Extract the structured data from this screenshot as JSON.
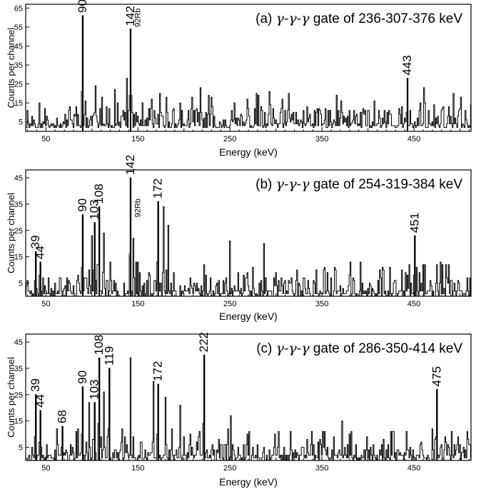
{
  "chart_data": [
    {
      "type": "bar",
      "title_prefix": "(a)",
      "title_gamma": "γ-γ-γ",
      "title_suffix": "gate of 236-307-376 keV",
      "xlabel": "Energy  (keV)",
      "ylabel": "Counts per channel",
      "xlim": [
        28,
        512
      ],
      "ylim": [
        0,
        67
      ],
      "xticks": [
        50,
        150,
        250,
        350,
        450
      ],
      "yticks": [
        5,
        15,
        25,
        35,
        45,
        55,
        65
      ],
      "peaks": [
        {
          "x": 90,
          "y": 61,
          "label": "90"
        },
        {
          "x": 142,
          "y": 54,
          "label": "142"
        },
        {
          "x": 443,
          "y": 28,
          "label": "443"
        }
      ],
      "annotations": [
        {
          "x": 147,
          "y": 55,
          "text": "92Rb"
        }
      ],
      "background": {
        "seed": 11,
        "min": 2,
        "max": 20,
        "spikes": [
          [
            138,
            28
          ],
          [
            104,
            24
          ],
          [
            218,
            23
          ],
          [
            461,
            23
          ],
          [
            125,
            22
          ],
          [
            293,
            21
          ]
        ]
      }
    },
    {
      "type": "bar",
      "title_prefix": "(b)",
      "title_gamma": "γ-γ-γ",
      "title_suffix": "gate of 254-319-384 keV",
      "xlabel": "Energy  (keV)",
      "ylabel": "Counts per channel",
      "xlim": [
        28,
        512
      ],
      "ylim": [
        0,
        48
      ],
      "xticks": [
        50,
        150,
        250,
        350,
        450
      ],
      "yticks": [
        5,
        15,
        25,
        35,
        45
      ],
      "peaks": [
        {
          "x": 39,
          "y": 17,
          "label": "39"
        },
        {
          "x": 44,
          "y": 13,
          "label": "44"
        },
        {
          "x": 90,
          "y": 31,
          "label": "90"
        },
        {
          "x": 103,
          "y": 28,
          "label": "103"
        },
        {
          "x": 108,
          "y": 34,
          "label": "108"
        },
        {
          "x": 142,
          "y": 45,
          "label": "142"
        },
        {
          "x": 172,
          "y": 36,
          "label": "172"
        },
        {
          "x": 451,
          "y": 23,
          "label": "451"
        }
      ],
      "annotations": [
        {
          "x": 147,
          "y": 30,
          "text": "92Rb"
        }
      ],
      "background": {
        "seed": 23,
        "min": 0,
        "max": 13,
        "spikes": [
          [
            178,
            34
          ],
          [
            145,
            22
          ],
          [
            100,
            23
          ],
          [
            113,
            24
          ],
          [
            183,
            27
          ],
          [
            250,
            21
          ],
          [
            287,
            20
          ]
        ]
      }
    },
    {
      "type": "bar",
      "title_prefix": "(c)",
      "title_gamma": "γ-γ-γ",
      "title_suffix": "gate of 286-350-414 keV",
      "xlabel": "Energy  (keV)",
      "ylabel": "Counts per channel",
      "xlim": [
        28,
        512
      ],
      "ylim": [
        0,
        48
      ],
      "xticks": [
        50,
        150,
        250,
        350,
        450
      ],
      "yticks": [
        5,
        15,
        25,
        35,
        45
      ],
      "peaks": [
        {
          "x": 39,
          "y": 25,
          "label": "39"
        },
        {
          "x": 44,
          "y": 19,
          "label": "44"
        },
        {
          "x": 68,
          "y": 13,
          "label": "68"
        },
        {
          "x": 90,
          "y": 28,
          "label": "90"
        },
        {
          "x": 103,
          "y": 22,
          "label": "103"
        },
        {
          "x": 108,
          "y": 39,
          "label": "108"
        },
        {
          "x": 119,
          "y": 35,
          "label": "119"
        },
        {
          "x": 172,
          "y": 29,
          "label": "172"
        },
        {
          "x": 222,
          "y": 40,
          "label": "222"
        },
        {
          "x": 475,
          "y": 27,
          "label": "475"
        }
      ],
      "annotations": [],
      "background": {
        "seed": 37,
        "min": 0,
        "max": 12,
        "spikes": [
          [
            142,
            39
          ],
          [
            167,
            30
          ],
          [
            113,
            26
          ],
          [
            180,
            24
          ],
          [
            97,
            22
          ],
          [
            196,
            21
          ],
          [
            251,
            17
          ],
          [
            372,
            15
          ]
        ]
      }
    }
  ]
}
